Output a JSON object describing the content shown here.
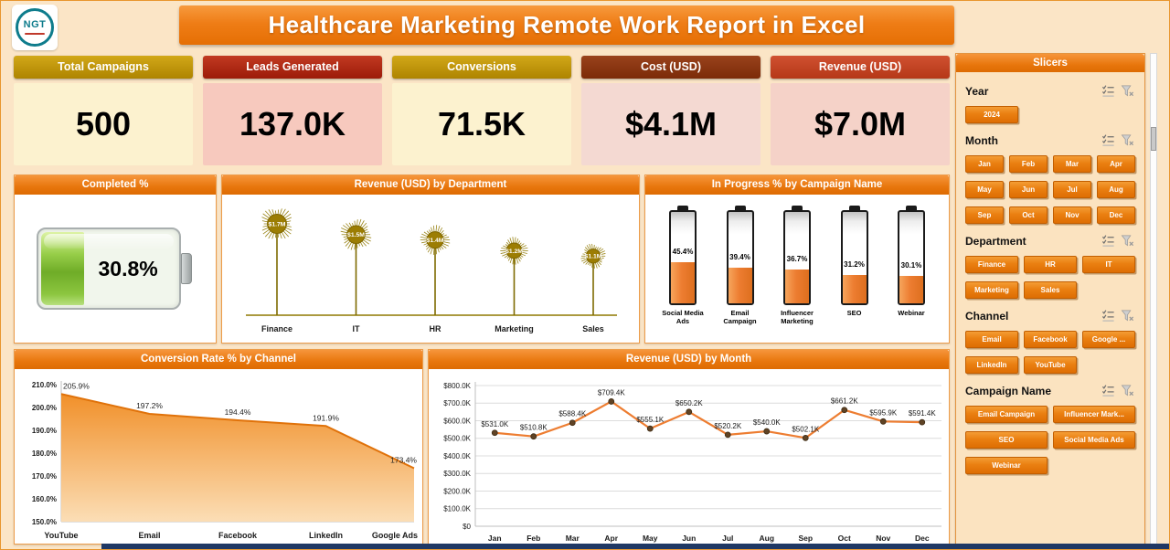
{
  "header": {
    "title": "Healthcare Marketing Remote Work Report in Excel",
    "logo_text": "NGT"
  },
  "kpis": [
    {
      "label": "Total Campaigns",
      "value": "500",
      "header_color": "#BF8F00",
      "body_color": "#FCF2CF"
    },
    {
      "label": "Leads Generated",
      "value": "137.0K",
      "header_color": "#A82311",
      "body_color": "#F7C9BE"
    },
    {
      "label": "Conversions",
      "value": "71.5K",
      "header_color": "#BF8F00",
      "body_color": "#FCF2CF"
    },
    {
      "label": "Cost (USD)",
      "value": "$4.1M",
      "header_color": "#87330F",
      "body_color": "#F4D9D2"
    },
    {
      "label": "Revenue (USD)",
      "value": "$7.0M",
      "header_color": "#C1431F",
      "body_color": "#F5D2C8"
    }
  ],
  "panels": {
    "completed": {
      "title": "Completed %"
    },
    "department": {
      "title": "Revenue (USD) by Department"
    },
    "progress": {
      "title": "In Progress % by Campaign Name"
    },
    "channel": {
      "title": "Conversion Rate % by Channel"
    },
    "month": {
      "title": "Revenue (USD) by Month"
    }
  },
  "chart_data": [
    {
      "id": "completed_pct",
      "type": "gauge",
      "title": "Completed %",
      "value": 30.8,
      "unit": "%",
      "label": "30.8%",
      "fill_color": "#8CC63F"
    },
    {
      "id": "revenue_by_department",
      "type": "bar",
      "variant": "dandelion",
      "title": "Revenue (USD) by Department",
      "categories": [
        "Finance",
        "IT",
        "HR",
        "Marketing",
        "Sales"
      ],
      "values": [
        1.7,
        1.5,
        1.4,
        1.2,
        1.1
      ],
      "labels": [
        "$1.7M",
        "$1.5M",
        "$1.4M",
        "$1.2M",
        "$1.1M"
      ],
      "unit": "USD millions",
      "color": "#8F7800"
    },
    {
      "id": "in_progress_by_campaign",
      "type": "bar",
      "variant": "battery-column",
      "title": "In Progress % by Campaign Name",
      "categories": [
        "Social Media Ads",
        "Email Campaign",
        "Influencer Marketing",
        "SEO",
        "Webinar"
      ],
      "values": [
        45.4,
        39.4,
        36.7,
        31.2,
        30.1
      ],
      "labels": [
        "45.4%",
        "39.4%",
        "36.7%",
        "31.2%",
        "30.1%"
      ],
      "unit": "%",
      "color": "#ED7D31"
    },
    {
      "id": "conversion_rate_by_channel",
      "type": "area",
      "title": "Conversion Rate % by Channel",
      "categories": [
        "YouTube",
        "Email",
        "Facebook",
        "LinkedIn",
        "Google Ads"
      ],
      "values": [
        205.9,
        197.2,
        194.4,
        191.9,
        173.4
      ],
      "labels": [
        "205.9%",
        "197.2%",
        "194.4%",
        "191.9%",
        "173.4%"
      ],
      "ylim": [
        150,
        210
      ],
      "yticks": [
        "150.0%",
        "160.0%",
        "170.0%",
        "180.0%",
        "190.0%",
        "200.0%",
        "210.0%"
      ],
      "grid": false,
      "color": "#ED7D31"
    },
    {
      "id": "revenue_by_month",
      "type": "line",
      "title": "Revenue (USD) by Month",
      "categories": [
        "Jan",
        "Feb",
        "Mar",
        "Apr",
        "May",
        "Jun",
        "Jul",
        "Aug",
        "Sep",
        "Oct",
        "Nov",
        "Dec"
      ],
      "values": [
        531.0,
        510.8,
        588.4,
        709.4,
        555.1,
        650.2,
        520.2,
        540.0,
        502.1,
        661.2,
        595.9,
        591.4
      ],
      "labels": [
        "$531.0K",
        "$510.8K",
        "$588.4K",
        "$709.4K",
        "$555.1K",
        "$650.2K",
        "$520.2K",
        "$540.0K",
        "$502.1K",
        "$661.2K",
        "$595.9K",
        "$591.4K"
      ],
      "ylim": [
        0,
        800
      ],
      "yticks": [
        "$0",
        "$100.0K",
        "$200.0K",
        "$300.0K",
        "$400.0K",
        "$500.0K",
        "$600.0K",
        "$700.0K",
        "$800.0K"
      ],
      "grid": true,
      "color": "#ED7D31"
    }
  ],
  "slicers": {
    "title": "Slicers",
    "sections": [
      {
        "name": "Year",
        "items": [
          "2024"
        ]
      },
      {
        "name": "Month",
        "items": [
          "Jan",
          "Feb",
          "Mar",
          "Apr",
          "May",
          "Jun",
          "Jul",
          "Aug",
          "Sep",
          "Oct",
          "Nov",
          "Dec"
        ]
      },
      {
        "name": "Department",
        "items": [
          "Finance",
          "HR",
          "IT",
          "Marketing",
          "Sales"
        ]
      },
      {
        "name": "Channel",
        "items": [
          "Email",
          "Facebook",
          "Google ...",
          "LinkedIn",
          "YouTube"
        ]
      },
      {
        "name": "Campaign Name",
        "items": [
          "Email Campaign",
          "Influencer Mark...",
          "SEO",
          "Social Media Ads",
          "Webinar"
        ]
      }
    ]
  },
  "colors": {
    "accent_orange": "#ED7D31",
    "page_background": "#FBE5C6",
    "panel_header": "#E8760C",
    "gauge_green": "#8CC63F",
    "dandelion_olive": "#8F7800",
    "slicer_button": "#EA7F11",
    "bottom_bar": "#1F3864"
  }
}
